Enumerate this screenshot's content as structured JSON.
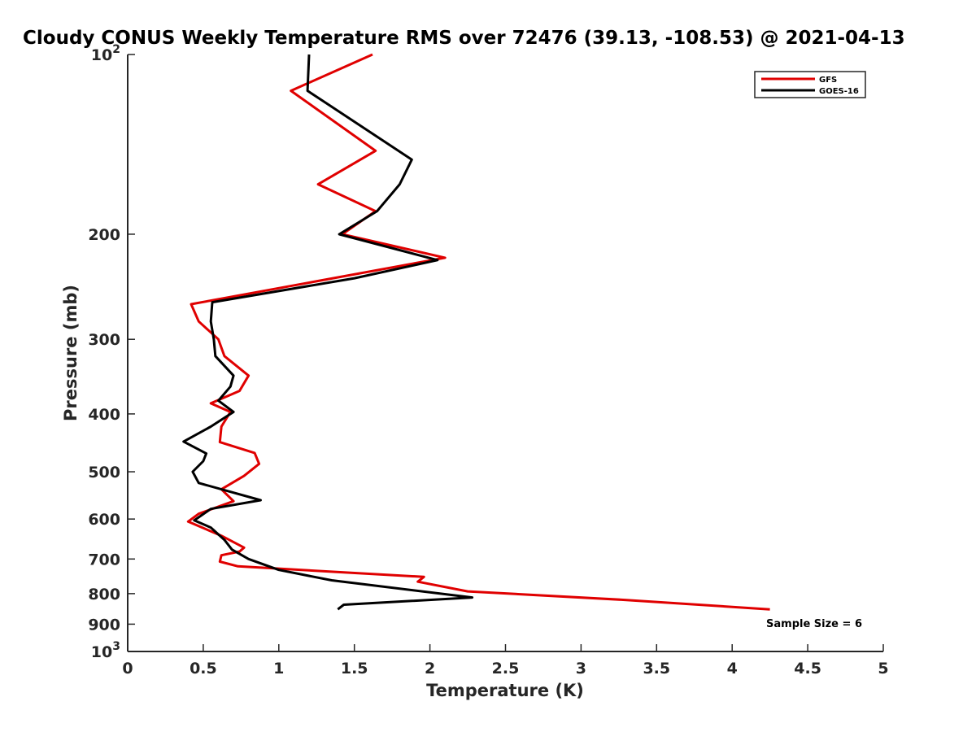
{
  "chart_data": {
    "type": "line",
    "title": "Cloudy CONUS Weekly Temperature RMS over 72476 (39.13, -108.53) @ 2021-04-13",
    "xlabel": "Temperature (K)",
    "ylabel": "Pressure (mb)",
    "xlim": [
      0,
      5
    ],
    "ylim": [
      100,
      1000
    ],
    "yscale": "log",
    "y_reversed": true,
    "x_ticks": [
      "0",
      "0.5",
      "1",
      "1.5",
      "2",
      "2.5",
      "3",
      "3.5",
      "4",
      "4.5",
      "5"
    ],
    "x_tick_values": [
      0,
      0.5,
      1,
      1.5,
      2,
      2.5,
      3,
      3.5,
      4,
      4.5,
      5
    ],
    "y_ticks": [
      {
        "value": 100,
        "base": "10",
        "exp": "2"
      },
      {
        "value": 200,
        "label": "200"
      },
      {
        "value": 300,
        "label": "300"
      },
      {
        "value": 400,
        "label": "400"
      },
      {
        "value": 500,
        "label": "500"
      },
      {
        "value": 600,
        "label": "600"
      },
      {
        "value": 700,
        "label": "700"
      },
      {
        "value": 800,
        "label": "800"
      },
      {
        "value": 900,
        "label": "900"
      },
      {
        "value": 1000,
        "base": "10",
        "exp": "3"
      }
    ],
    "grid": false,
    "legend_position": "top-right",
    "annotation": "Sample Size = 6",
    "series": [
      {
        "name": "GFS",
        "color": "#e00000",
        "points": [
          [
            1.62,
            100
          ],
          [
            1.08,
            115
          ],
          [
            1.64,
            145
          ],
          [
            1.26,
            165
          ],
          [
            1.64,
            183
          ],
          [
            1.42,
            200
          ],
          [
            2.1,
            219
          ],
          [
            0.42,
            262
          ],
          [
            0.47,
            280
          ],
          [
            0.6,
            300
          ],
          [
            0.64,
            320
          ],
          [
            0.8,
            345
          ],
          [
            0.74,
            366
          ],
          [
            0.55,
            384
          ],
          [
            0.68,
            397
          ],
          [
            0.62,
            420
          ],
          [
            0.61,
            446
          ],
          [
            0.84,
            465
          ],
          [
            0.87,
            485
          ],
          [
            0.77,
            508
          ],
          [
            0.62,
            535
          ],
          [
            0.7,
            560
          ],
          [
            0.47,
            588
          ],
          [
            0.4,
            606
          ],
          [
            0.62,
            640
          ],
          [
            0.77,
            670
          ],
          [
            0.74,
            680
          ],
          [
            0.62,
            690
          ],
          [
            0.61,
            707
          ],
          [
            0.73,
            720
          ],
          [
            1.96,
            750
          ],
          [
            1.92,
            764
          ],
          [
            2.25,
            793
          ],
          [
            3.3,
            820
          ],
          [
            4.25,
            850
          ]
        ]
      },
      {
        "name": "GOES-16",
        "color": "#000000",
        "points": [
          [
            1.2,
            100
          ],
          [
            1.19,
            115
          ],
          [
            1.88,
            150
          ],
          [
            1.8,
            165
          ],
          [
            1.65,
            183
          ],
          [
            1.4,
            200
          ],
          [
            2.05,
            221
          ],
          [
            1.5,
            237
          ],
          [
            0.56,
            260
          ],
          [
            0.55,
            280
          ],
          [
            0.57,
            300
          ],
          [
            0.58,
            320
          ],
          [
            0.7,
            345
          ],
          [
            0.68,
            360
          ],
          [
            0.6,
            380
          ],
          [
            0.7,
            397
          ],
          [
            0.55,
            420
          ],
          [
            0.37,
            445
          ],
          [
            0.52,
            466
          ],
          [
            0.5,
            480
          ],
          [
            0.43,
            500
          ],
          [
            0.47,
            522
          ],
          [
            0.88,
            558
          ],
          [
            0.55,
            577
          ],
          [
            0.44,
            603
          ],
          [
            0.55,
            620
          ],
          [
            0.64,
            650
          ],
          [
            0.69,
            675
          ],
          [
            0.8,
            700
          ],
          [
            1.0,
            730
          ],
          [
            1.35,
            760
          ],
          [
            2.28,
            812
          ],
          [
            1.43,
            835
          ],
          [
            1.39,
            850
          ]
        ]
      }
    ]
  }
}
